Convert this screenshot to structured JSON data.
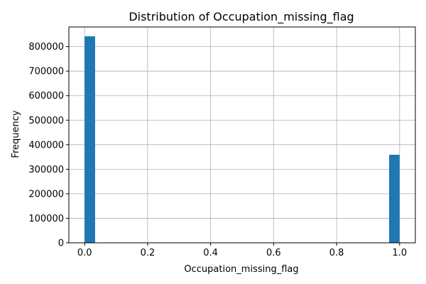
{
  "chart_data": {
    "type": "bar",
    "title": "Distribution of Occupation_missing_flag",
    "xlabel": "Occupation_missing_flag",
    "ylabel": "Frequency",
    "xlim": [
      -0.05,
      1.05
    ],
    "ylim": [
      0,
      880000
    ],
    "xticks": [
      0.0,
      0.2,
      0.4,
      0.6,
      0.8,
      1.0
    ],
    "xtick_labels": [
      "0.0",
      "0.2",
      "0.4",
      "0.6",
      "0.8",
      "1.0"
    ],
    "yticks": [
      0,
      100000,
      200000,
      300000,
      400000,
      500000,
      600000,
      700000,
      800000
    ],
    "ytick_labels": [
      "0",
      "100000",
      "200000",
      "300000",
      "400000",
      "500000",
      "600000",
      "700000",
      "800000"
    ],
    "grid": true,
    "bin_width": 0.0333,
    "bars": [
      {
        "x_start": 0.0,
        "x_end": 0.0333,
        "value": 842000
      },
      {
        "x_start": 0.9667,
        "x_end": 1.0,
        "value": 359000
      }
    ],
    "colors": {
      "bar": "#1f77b4",
      "grid": "#b0b0b0",
      "axis": "#000000"
    }
  }
}
